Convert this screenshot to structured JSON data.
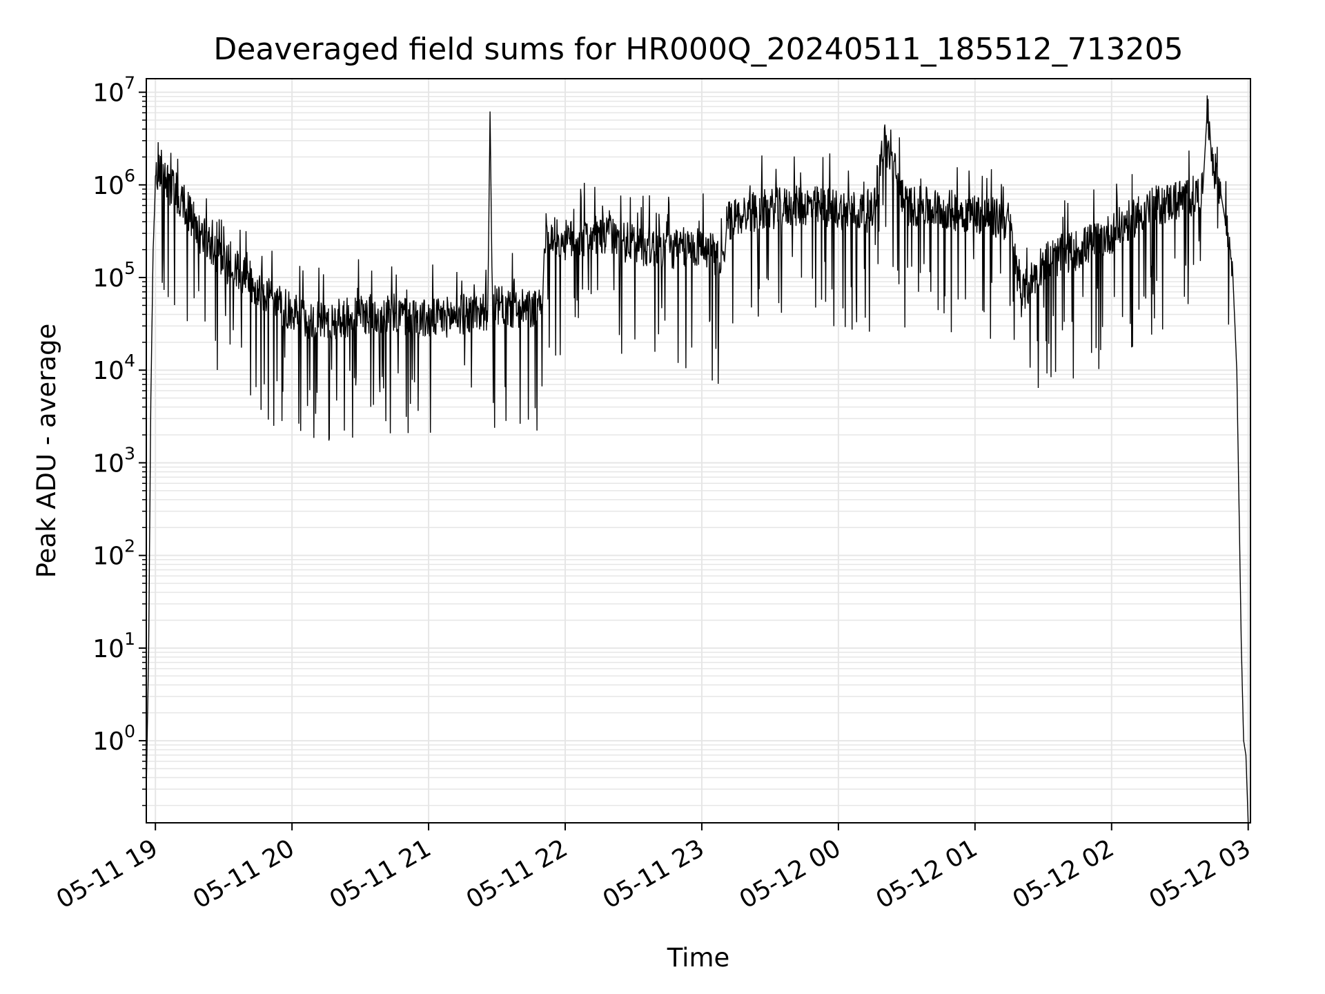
{
  "chart_data": {
    "type": "line",
    "title": "Deaveraged field sums for HR000Q_20240511_185512_713205",
    "xlabel": "Time",
    "ylabel": "Peak ADU - average",
    "yscale": "log",
    "ylim": [
      0.13,
      14000000
    ],
    "xlim": [
      "05-11 18:56",
      "05-12 03:01"
    ],
    "grid": true,
    "line_color": "#000000",
    "grid_color": "#e6e6e6",
    "x_ticks": [
      "05-11 19",
      "05-11 20",
      "05-11 21",
      "05-11 22",
      "05-11 23",
      "05-12 00",
      "05-12 01",
      "05-12 02",
      "05-12 03"
    ],
    "y_ticks": [
      {
        "base": "10",
        "exp": "0",
        "value": 1
      },
      {
        "base": "10",
        "exp": "1",
        "value": 10
      },
      {
        "base": "10",
        "exp": "2",
        "value": 100
      },
      {
        "base": "10",
        "exp": "3",
        "value": 1000
      },
      {
        "base": "10",
        "exp": "4",
        "value": 10000
      },
      {
        "base": "10",
        "exp": "5",
        "value": 100000
      },
      {
        "base": "10",
        "exp": "6",
        "value": 1000000
      },
      {
        "base": "10",
        "exp": "7",
        "value": 10000000
      }
    ],
    "series": [
      {
        "x": [
          "05-11 18:56",
          "05-11 18:57",
          "05-11 18:58",
          "05-11 18:59",
          "05-11 19:00",
          "05-11 19:03",
          "05-11 19:06",
          "05-11 19:10",
          "05-11 19:15",
          "05-11 19:20",
          "05-11 19:25",
          "05-11 19:30",
          "05-11 19:40",
          "05-11 19:50",
          "05-11 20:00",
          "05-11 20:10",
          "05-11 20:20",
          "05-11 20:30",
          "05-11 20:45",
          "05-11 21:00",
          "05-11 21:15",
          "05-11 21:26",
          "05-11 21:27",
          "05-11 21:28",
          "05-11 21:40",
          "05-11 21:50",
          "05-11 21:51",
          "05-11 22:00",
          "05-11 22:15",
          "05-11 22:30",
          "05-11 22:45",
          "05-11 23:00",
          "05-11 23:10",
          "05-11 23:11",
          "05-11 23:20",
          "05-11 23:30",
          "05-11 23:45",
          "05-12 00:00",
          "05-12 00:15",
          "05-12 00:20",
          "05-12 00:30",
          "05-12 00:45",
          "05-12 01:00",
          "05-12 01:15",
          "05-12 01:20",
          "05-12 01:30",
          "05-12 01:45",
          "05-12 02:00",
          "05-12 02:15",
          "05-12 02:30",
          "05-12 02:40",
          "05-12 02:42",
          "05-12 02:45",
          "05-12 02:48",
          "05-12 02:50",
          "05-12 02:53",
          "05-12 02:55",
          "05-12 02:57",
          "05-12 02:58",
          "05-12 02:59",
          "05-12 03:00"
        ],
        "y": [
          0.3,
          8,
          5000,
          200000,
          1000000,
          1700000,
          1000000,
          800000,
          500000,
          280000,
          220000,
          150000,
          100000,
          60000,
          40000,
          35000,
          35000,
          40000,
          40000,
          35000,
          40000,
          45000,
          6200000,
          50000,
          45000,
          45000,
          300000,
          250000,
          280000,
          230000,
          200000,
          220000,
          150000,
          400000,
          500000,
          550000,
          600000,
          550000,
          500000,
          3000000,
          600000,
          550000,
          500000,
          400000,
          60000,
          150000,
          200000,
          300000,
          550000,
          700000,
          800000,
          6300000,
          1500000,
          800000,
          400000,
          150000,
          10000,
          10,
          1,
          0.7,
          0.13
        ]
      }
    ]
  }
}
